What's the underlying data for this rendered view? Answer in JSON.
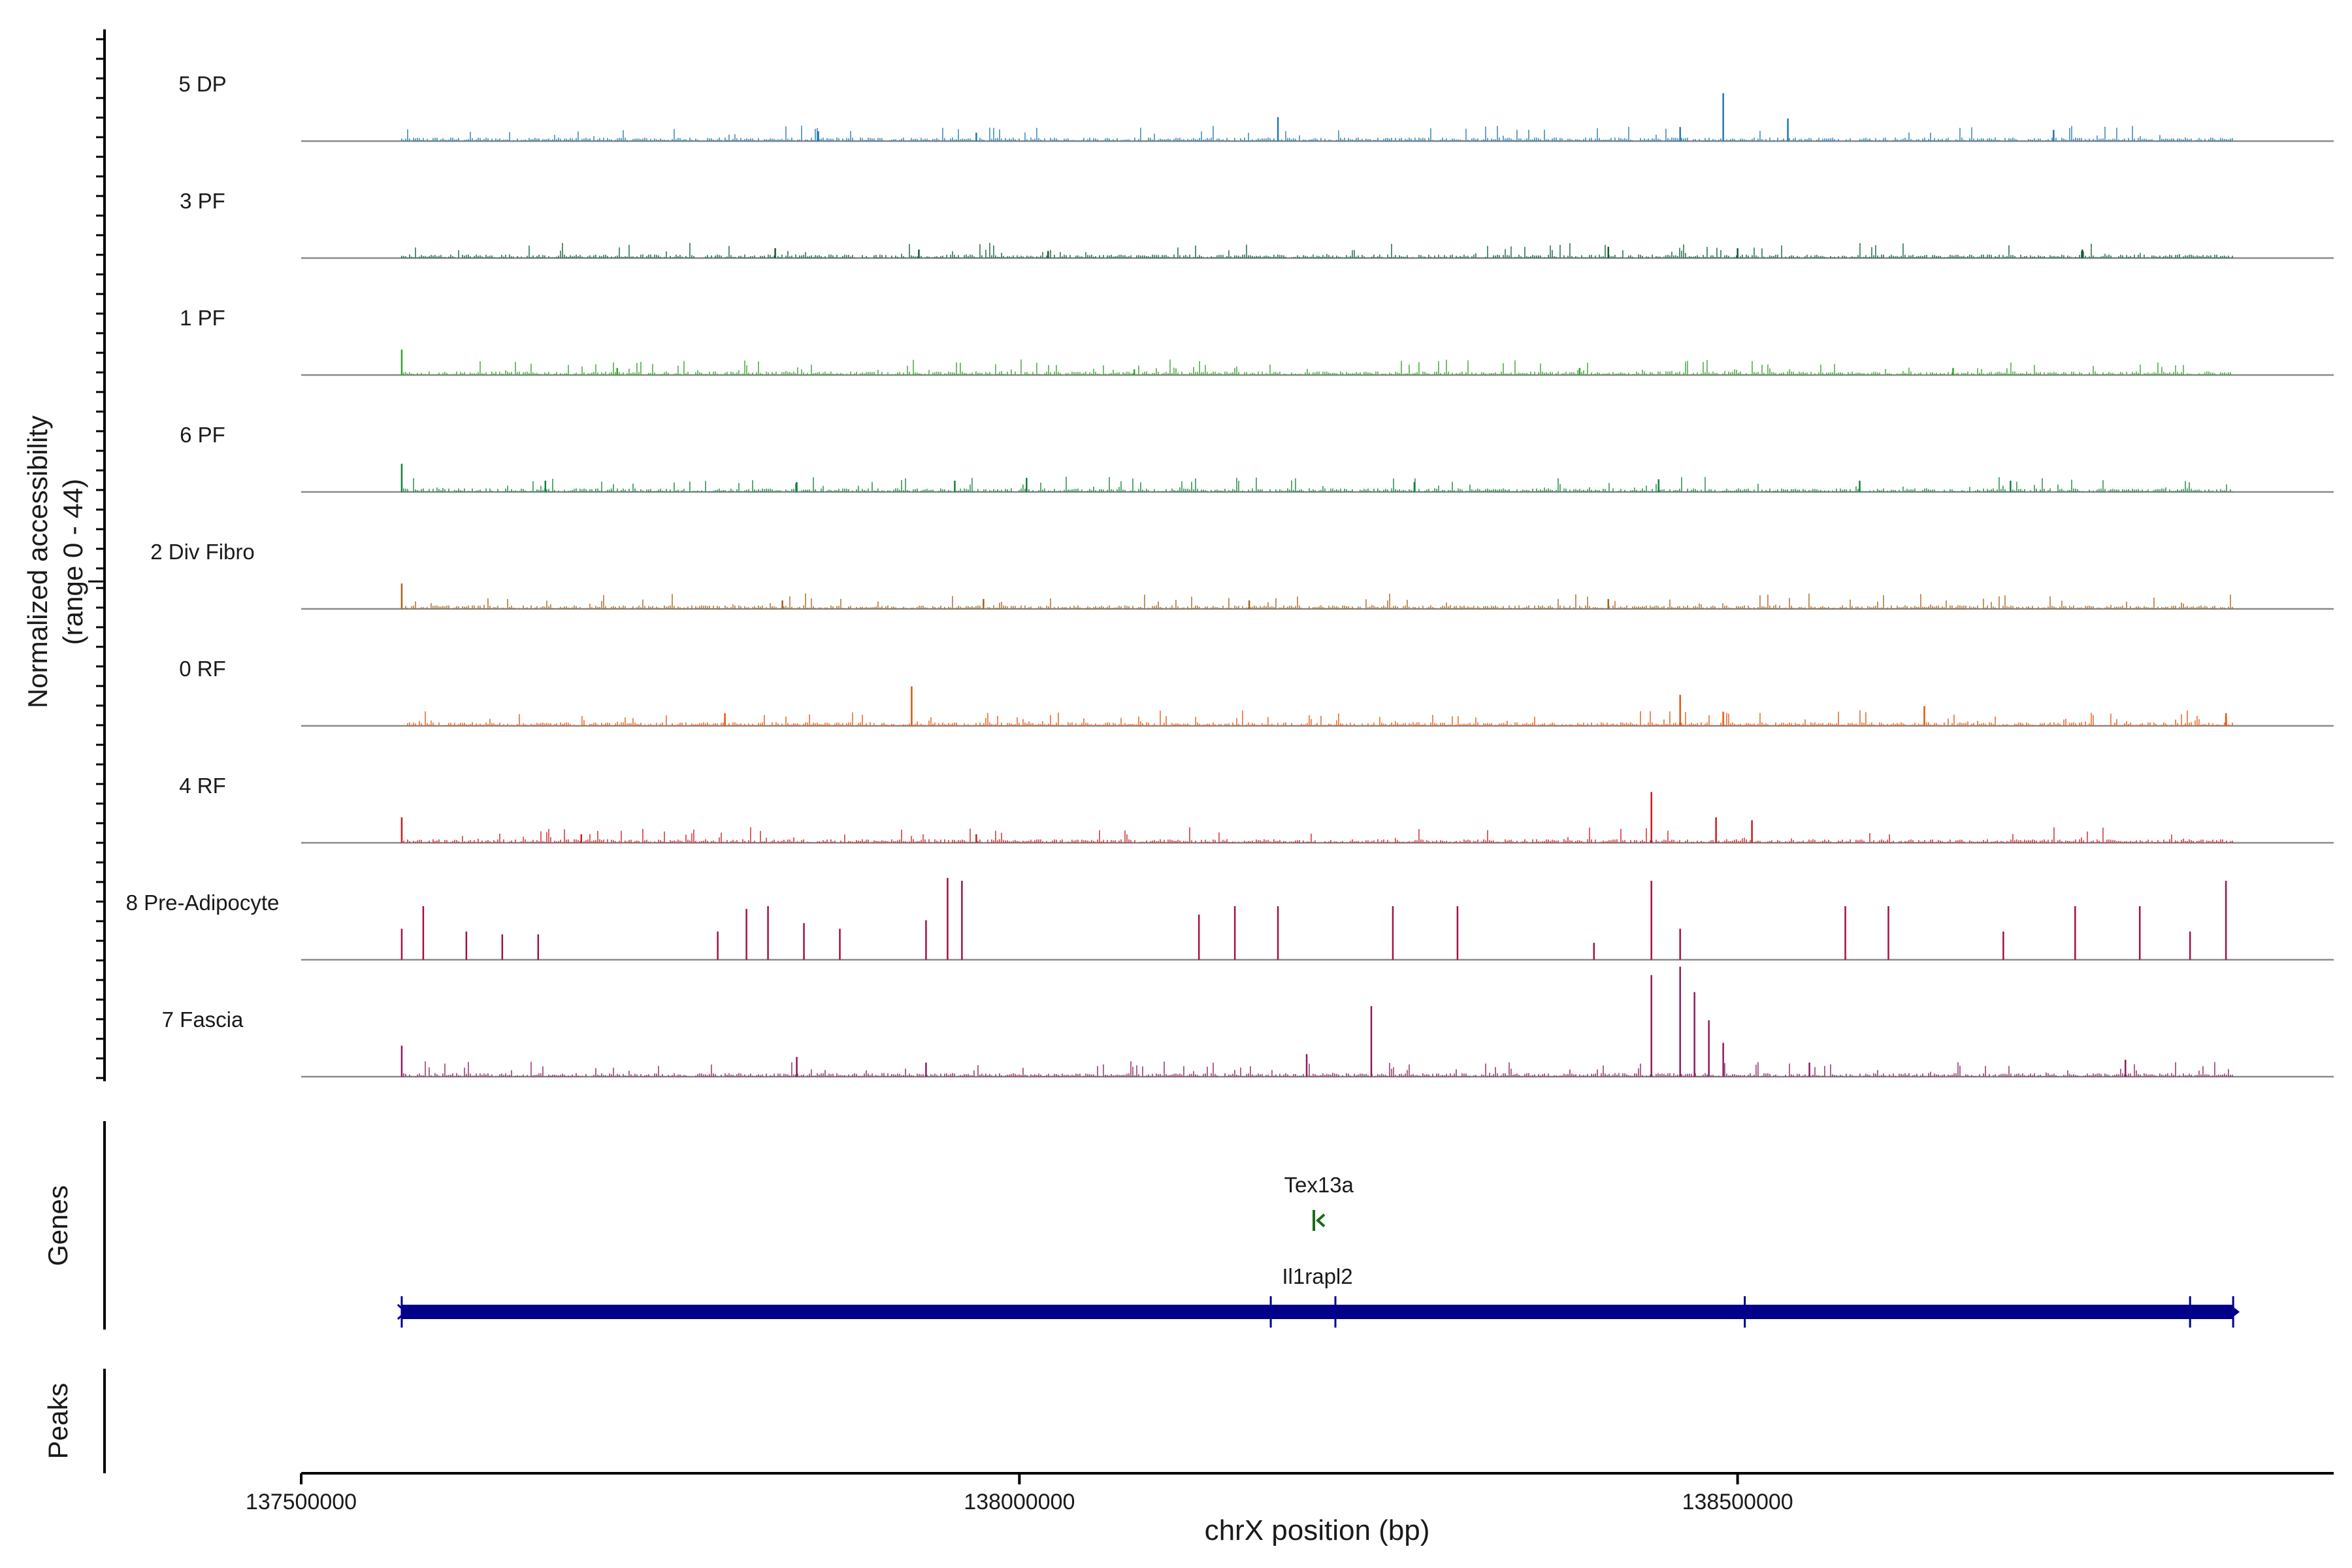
{
  "chart_data": {
    "type": "area",
    "title": "",
    "ylabel_line1": "Normalized accessibility",
    "ylabel_line2": "(range 0 - 44)",
    "xlabel": "chrX position (bp)",
    "xlim": [
      137500000,
      138915000
    ],
    "ylim": [
      0,
      44
    ],
    "xticks": [
      137500000,
      138000000,
      138500000
    ],
    "xtick_labels": [
      "137500000",
      "138000000",
      "138500000"
    ],
    "data_range": [
      137570000,
      138845000
    ],
    "series": [
      {
        "name": "5 DP",
        "color": "#1f78b4",
        "spikes": [
          [
            137860000,
            3.5
          ],
          [
            137970000,
            3.0
          ],
          [
            138180000,
            8.5
          ],
          [
            138460000,
            5.0
          ],
          [
            138490000,
            17.0
          ],
          [
            138535000,
            8.0
          ],
          [
            138720000,
            4.0
          ]
        ]
      },
      {
        "name": "3 PF",
        "color": "#0b5d33",
        "spikes": [
          [
            137830000,
            3.5
          ],
          [
            137930000,
            3.0
          ],
          [
            138020000,
            2.5
          ],
          [
            138410000,
            4.0
          ],
          [
            138500000,
            3.5
          ],
          [
            138740000,
            3.0
          ]
        ]
      },
      {
        "name": "1 PF",
        "color": "#33a02c",
        "spikes": [
          [
            137570000,
            9.0
          ],
          [
            137720000,
            2.5
          ],
          [
            138080000,
            2.0
          ],
          [
            138390000,
            2.5
          ],
          [
            138650000,
            2.5
          ]
        ]
      },
      {
        "name": "6 PF",
        "color": "#12803c",
        "spikes": [
          [
            137570000,
            10.0
          ],
          [
            137670000,
            4.0
          ],
          [
            137845000,
            3.5
          ],
          [
            137955000,
            4.0
          ],
          [
            138005000,
            5.0
          ],
          [
            138275000,
            3.5
          ],
          [
            138445000,
            4.5
          ],
          [
            138585000,
            4.0
          ],
          [
            138690000,
            4.0
          ]
        ]
      },
      {
        "name": "2 Div Fibro",
        "color": "#a6611a",
        "spikes": [
          [
            137570000,
            9.0
          ],
          [
            137835000,
            3.0
          ],
          [
            137975000,
            3.5
          ],
          [
            138160000,
            3.0
          ],
          [
            138410000,
            3.5
          ]
        ]
      },
      {
        "name": "0 RF",
        "color": "#e6550d",
        "spikes": [
          [
            137795000,
            4.5
          ],
          [
            137925000,
            14.0
          ],
          [
            138460000,
            11.0
          ],
          [
            138490000,
            5.0
          ],
          [
            138630000,
            7.0
          ],
          [
            138840000,
            4.5
          ]
        ]
      },
      {
        "name": "4 RF",
        "color": "#cb181d",
        "spikes": [
          [
            137570000,
            9.0
          ],
          [
            137695000,
            3.0
          ],
          [
            137970000,
            3.0
          ],
          [
            138440000,
            18.0
          ],
          [
            138485000,
            9.0
          ],
          [
            138510000,
            8.0
          ]
        ]
      },
      {
        "name": "8 Pre-Adipocyte",
        "color": "#a50f47",
        "spikes": [
          [
            137570000,
            11.0
          ],
          [
            137585000,
            19.0
          ],
          [
            137615000,
            10.0
          ],
          [
            137640000,
            9.0
          ],
          [
            137665000,
            9.0
          ],
          [
            137790000,
            10.0
          ],
          [
            137810000,
            18.0
          ],
          [
            137825000,
            19.0
          ],
          [
            137850000,
            13.0
          ],
          [
            137875000,
            11.0
          ],
          [
            137935000,
            14.0
          ],
          [
            137950000,
            29.0
          ],
          [
            137960000,
            28.0
          ],
          [
            138125000,
            16.0
          ],
          [
            138150000,
            19.0
          ],
          [
            138180000,
            19.0
          ],
          [
            138260000,
            19.0
          ],
          [
            138305000,
            19.0
          ],
          [
            138400000,
            6.0
          ],
          [
            138440000,
            28.0
          ],
          [
            138460000,
            11.0
          ],
          [
            138575000,
            19.0
          ],
          [
            138605000,
            19.0
          ],
          [
            138685000,
            10.0
          ],
          [
            138735000,
            19.0
          ],
          [
            138780000,
            19.0
          ],
          [
            138815000,
            10.0
          ],
          [
            138840000,
            28.0
          ]
        ]
      },
      {
        "name": "7 Fascia",
        "color": "#8c1a5c",
        "spikes": [
          [
            137570000,
            11.0
          ],
          [
            137845000,
            7.0
          ],
          [
            137935000,
            5.0
          ],
          [
            138200000,
            8.0
          ],
          [
            138245000,
            25.0
          ],
          [
            138440000,
            36.0
          ],
          [
            138460000,
            39.0
          ],
          [
            138470000,
            30.0
          ],
          [
            138480000,
            20.0
          ],
          [
            138490000,
            12.0
          ],
          [
            138550000,
            5.0
          ],
          [
            138770000,
            6.0
          ]
        ]
      }
    ],
    "genes": [
      {
        "name": "Tex13a",
        "start": 138205000,
        "end": 138212000,
        "strand": "-",
        "color": "#1a6b1a"
      },
      {
        "name": "Il1rapl2",
        "start": 137570000,
        "end": 138845000,
        "strand": "+",
        "color": "#00008b"
      }
    ],
    "genes_label": "Genes",
    "peaks_label": "Peaks"
  }
}
